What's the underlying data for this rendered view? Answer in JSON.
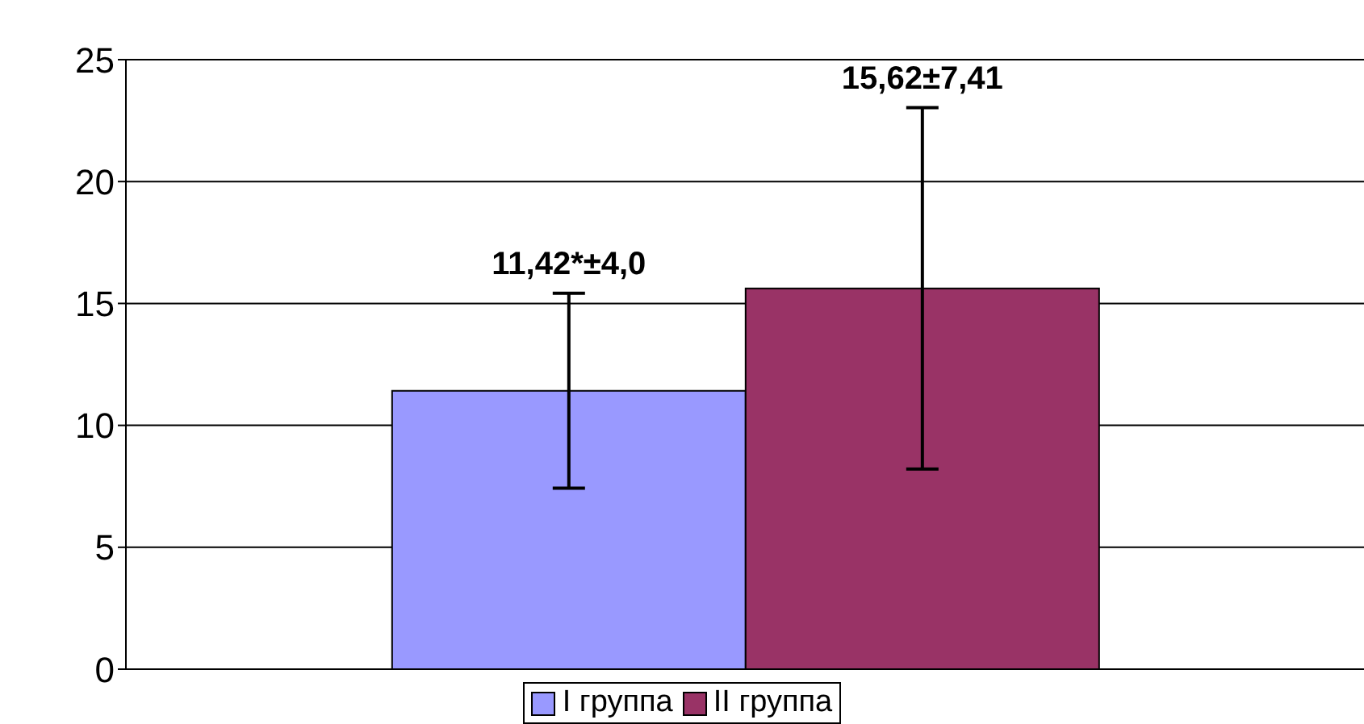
{
  "chart_data": {
    "type": "bar",
    "categories": [
      null
    ],
    "series": [
      {
        "name": "I группа",
        "color": "#9999ff",
        "values": [
          11.42
        ],
        "errors": [
          4.0
        ]
      },
      {
        "name": "II группа",
        "color": "#993366",
        "values": [
          15.62
        ],
        "errors": [
          7.41
        ]
      }
    ],
    "annotations": [
      "11,42*±4,0",
      "15,62±7,41"
    ],
    "ylim": [
      0,
      25
    ],
    "yticks": [
      0,
      5,
      10,
      15,
      20,
      25
    ],
    "grid": "y",
    "legend": "bottom"
  }
}
